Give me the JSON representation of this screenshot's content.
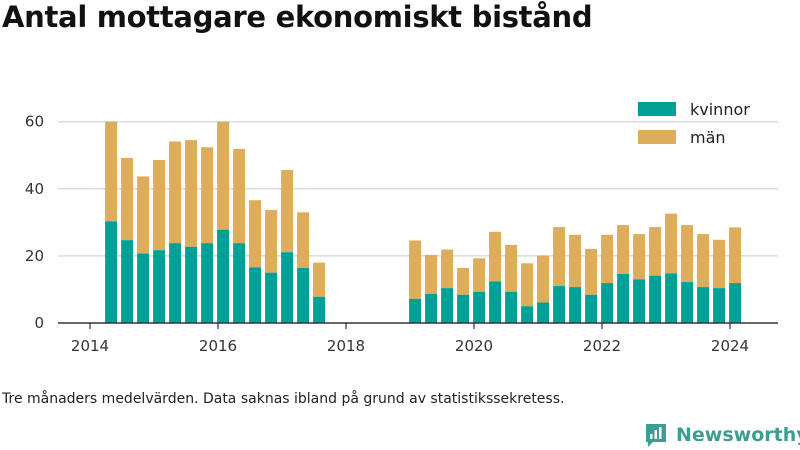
{
  "title": "Antal mottagare ekonomiskt bistånd",
  "caption": "Tre månaders medelvärden. Data saknas ibland på grund av statistikssekretess.",
  "brand": {
    "name": "Newsworthy",
    "icon": "bar-chart-logo-icon",
    "color": "#3c9e90"
  },
  "colors": {
    "kvinnor": "#00a096",
    "man": "#dcad5c",
    "grid": "#dddddd",
    "axis": "#333333"
  },
  "chart_data": {
    "type": "bar",
    "stacked": true,
    "x_axis": {
      "ticks": [
        2014,
        2016,
        2018,
        2020,
        2022,
        2024
      ],
      "range": [
        2013.5,
        2024.75
      ]
    },
    "y_axis": {
      "ticks": [
        0,
        20,
        40,
        60
      ],
      "range": [
        0,
        62
      ]
    },
    "grid": true,
    "legend_position": "top-right",
    "series": [
      {
        "name": "kvinnor",
        "color": "#00a096"
      },
      {
        "name": "män",
        "color": "#dcad5c"
      }
    ],
    "points": [
      {
        "x": 2014.33,
        "kvinnor": 30.3,
        "man": 29.7
      },
      {
        "x": 2014.58,
        "kvinnor": 24.7,
        "man": 24.5
      },
      {
        "x": 2014.83,
        "kvinnor": 20.7,
        "man": 23.0
      },
      {
        "x": 2015.08,
        "kvinnor": 21.7,
        "man": 26.9
      },
      {
        "x": 2015.33,
        "kvinnor": 23.8,
        "man": 30.3
      },
      {
        "x": 2015.58,
        "kvinnor": 22.7,
        "man": 31.8
      },
      {
        "x": 2015.83,
        "kvinnor": 23.8,
        "man": 28.6
      },
      {
        "x": 2016.08,
        "kvinnor": 27.8,
        "man": 32.2
      },
      {
        "x": 2016.33,
        "kvinnor": 23.8,
        "man": 28.1
      },
      {
        "x": 2016.58,
        "kvinnor": 16.6,
        "man": 20.0
      },
      {
        "x": 2016.83,
        "kvinnor": 15.0,
        "man": 18.7
      },
      {
        "x": 2017.08,
        "kvinnor": 21.1,
        "man": 24.5
      },
      {
        "x": 2017.33,
        "kvinnor": 16.4,
        "man": 16.6
      },
      {
        "x": 2017.58,
        "kvinnor": 7.8,
        "man": 10.2
      },
      {
        "x": 2019.08,
        "kvinnor": 7.2,
        "man": 17.4
      },
      {
        "x": 2019.33,
        "kvinnor": 8.7,
        "man": 11.6
      },
      {
        "x": 2019.58,
        "kvinnor": 10.4,
        "man": 11.5
      },
      {
        "x": 2019.83,
        "kvinnor": 8.4,
        "man": 8.0
      },
      {
        "x": 2020.08,
        "kvinnor": 9.3,
        "man": 10.0
      },
      {
        "x": 2020.33,
        "kvinnor": 12.4,
        "man": 14.8
      },
      {
        "x": 2020.58,
        "kvinnor": 9.3,
        "man": 14.0
      },
      {
        "x": 2020.83,
        "kvinnor": 5.0,
        "man": 12.8
      },
      {
        "x": 2021.08,
        "kvinnor": 6.1,
        "man": 14.0
      },
      {
        "x": 2021.33,
        "kvinnor": 11.0,
        "man": 17.6
      },
      {
        "x": 2021.58,
        "kvinnor": 10.7,
        "man": 15.6
      },
      {
        "x": 2021.83,
        "kvinnor": 8.4,
        "man": 13.7
      },
      {
        "x": 2022.08,
        "kvinnor": 11.9,
        "man": 14.4
      },
      {
        "x": 2022.33,
        "kvinnor": 14.6,
        "man": 14.6
      },
      {
        "x": 2022.58,
        "kvinnor": 13.0,
        "man": 13.5
      },
      {
        "x": 2022.83,
        "kvinnor": 14.1,
        "man": 14.5
      },
      {
        "x": 2023.08,
        "kvinnor": 14.8,
        "man": 17.8
      },
      {
        "x": 2023.33,
        "kvinnor": 12.2,
        "man": 17.0
      },
      {
        "x": 2023.58,
        "kvinnor": 10.7,
        "man": 15.8
      },
      {
        "x": 2023.83,
        "kvinnor": 10.4,
        "man": 14.4
      },
      {
        "x": 2024.08,
        "kvinnor": 11.9,
        "man": 16.6
      }
    ]
  }
}
